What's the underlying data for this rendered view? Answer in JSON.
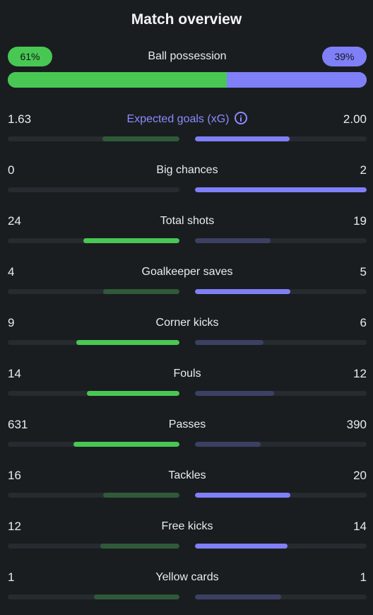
{
  "title": "Match overview",
  "colors": {
    "background": "#1a1d20",
    "home": "#48c853",
    "home_dim": "#2f5a39",
    "away": "#7f80f7",
    "away_dim": "#3c4163",
    "track": "#262b30",
    "accent_label": "#8a8cff"
  },
  "possession": {
    "label": "Ball possession",
    "home_text": "61%",
    "away_text": "39%",
    "home_value": 61,
    "away_value": 39
  },
  "stats": [
    {
      "label": "Expected goals (xG)",
      "home": "1.63",
      "away": "2.00",
      "home_num": 1.63,
      "away_num": 2.0,
      "accent": true,
      "info_icon": "info-icon"
    },
    {
      "label": "Big chances",
      "home": "0",
      "away": "2",
      "home_num": 0,
      "away_num": 2
    },
    {
      "label": "Total shots",
      "home": "24",
      "away": "19",
      "home_num": 24,
      "away_num": 19
    },
    {
      "label": "Goalkeeper saves",
      "home": "4",
      "away": "5",
      "home_num": 4,
      "away_num": 5
    },
    {
      "label": "Corner kicks",
      "home": "9",
      "away": "6",
      "home_num": 9,
      "away_num": 6
    },
    {
      "label": "Fouls",
      "home": "14",
      "away": "12",
      "home_num": 14,
      "away_num": 12
    },
    {
      "label": "Passes",
      "home": "631",
      "away": "390",
      "home_num": 631,
      "away_num": 390
    },
    {
      "label": "Tackles",
      "home": "16",
      "away": "20",
      "home_num": 16,
      "away_num": 20
    },
    {
      "label": "Free kicks",
      "home": "12",
      "away": "14",
      "home_num": 12,
      "away_num": 14
    },
    {
      "label": "Yellow cards",
      "home": "1",
      "away": "1",
      "home_num": 1,
      "away_num": 1
    }
  ]
}
